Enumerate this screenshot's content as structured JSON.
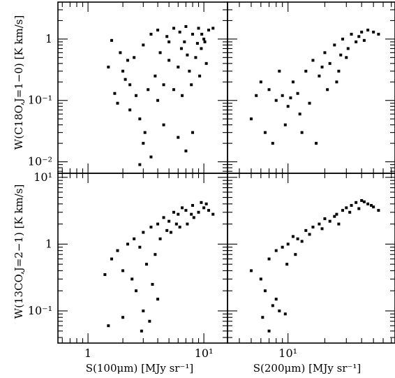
{
  "chart_data": [
    {
      "type": "scatter",
      "panel": "top-left",
      "x_scale": "log",
      "y_scale": "log",
      "xlim": [
        0.55,
        16
      ],
      "ylim": [
        0.0065,
        4.0
      ],
      "ylabel": "W(C18O,J=1−0) [K km/s]",
      "y_ticklabels": [
        {
          "v": 1,
          "t": "1"
        },
        {
          "v": 0.1,
          "t": "10⁻¹"
        },
        {
          "v": 0.01,
          "t": "10⁻²"
        }
      ],
      "x_ticklabels": [],
      "points": [
        [
          1.6,
          0.95
        ],
        [
          1.9,
          0.6
        ],
        [
          2.0,
          0.3
        ],
        [
          2.3,
          0.18
        ],
        [
          2.6,
          0.12
        ],
        [
          2.1,
          0.22
        ],
        [
          1.5,
          0.35
        ],
        [
          1.8,
          0.09
        ],
        [
          2.3,
          0.07
        ],
        [
          2.8,
          0.05
        ],
        [
          3.1,
          0.03
        ],
        [
          1.7,
          0.13
        ],
        [
          2.5,
          0.5
        ],
        [
          3.0,
          0.8
        ],
        [
          3.5,
          1.2
        ],
        [
          4.0,
          1.4
        ],
        [
          4.8,
          1.1
        ],
        [
          5.5,
          1.5
        ],
        [
          6.2,
          1.3
        ],
        [
          7.0,
          1.6
        ],
        [
          8.0,
          1.2
        ],
        [
          9.0,
          1.5
        ],
        [
          10.0,
          1.0
        ],
        [
          11.0,
          1.4
        ],
        [
          4.2,
          0.6
        ],
        [
          5.0,
          0.45
        ],
        [
          6.0,
          0.35
        ],
        [
          7.5,
          0.3
        ],
        [
          9.2,
          0.25
        ],
        [
          10.5,
          0.4
        ],
        [
          3.8,
          0.25
        ],
        [
          4.5,
          0.18
        ],
        [
          5.5,
          0.15
        ],
        [
          6.5,
          0.12
        ],
        [
          7.8,
          0.18
        ],
        [
          8.5,
          0.5
        ],
        [
          9.5,
          0.7
        ],
        [
          3.0,
          0.02
        ],
        [
          3.5,
          0.012
        ],
        [
          4.5,
          0.04
        ],
        [
          6.0,
          0.025
        ],
        [
          7.0,
          0.015
        ],
        [
          8.0,
          0.03
        ],
        [
          2.8,
          0.009
        ],
        [
          5.0,
          0.9
        ],
        [
          6.8,
          0.9
        ],
        [
          8.8,
          0.85
        ],
        [
          10.2,
          0.9
        ],
        [
          12.0,
          1.5
        ],
        [
          4.0,
          0.1
        ],
        [
          3.3,
          0.15
        ],
        [
          2.2,
          0.45
        ],
        [
          6.4,
          0.7
        ],
        [
          7.2,
          0.55
        ],
        [
          9.6,
          1.2
        ]
      ]
    },
    {
      "type": "scatter",
      "panel": "top-right",
      "x_scale": "log",
      "y_scale": "log",
      "xlim": [
        3.2,
        75
      ],
      "ylim": [
        0.0065,
        4.0
      ],
      "x_ticklabels": [],
      "y_ticklabels": [],
      "points": [
        [
          6.0,
          0.2
        ],
        [
          7.0,
          0.15
        ],
        [
          8.0,
          0.1
        ],
        [
          9.0,
          0.12
        ],
        [
          10.0,
          0.08
        ],
        [
          11.0,
          0.2
        ],
        [
          12.0,
          0.13
        ],
        [
          14.0,
          0.3
        ],
        [
          16.0,
          0.45
        ],
        [
          18.0,
          0.25
        ],
        [
          20.0,
          0.6
        ],
        [
          22.0,
          0.4
        ],
        [
          24.0,
          0.8
        ],
        [
          26.0,
          0.3
        ],
        [
          28.0,
          1.0
        ],
        [
          30.0,
          0.5
        ],
        [
          33.0,
          1.2
        ],
        [
          36.0,
          0.9
        ],
        [
          40.0,
          1.3
        ],
        [
          45.0,
          1.4
        ],
        [
          50.0,
          1.3
        ],
        [
          55.0,
          1.2
        ],
        [
          5.0,
          0.05
        ],
        [
          6.5,
          0.03
        ],
        [
          7.5,
          0.02
        ],
        [
          9.5,
          0.04
        ],
        [
          13.0,
          0.03
        ],
        [
          17.0,
          0.02
        ],
        [
          15.0,
          0.09
        ],
        [
          12.5,
          0.06
        ],
        [
          8.5,
          0.3
        ],
        [
          25.0,
          0.2
        ],
        [
          27.0,
          0.55
        ],
        [
          31.0,
          0.7
        ],
        [
          21.0,
          0.15
        ],
        [
          19.0,
          0.35
        ],
        [
          38.0,
          1.1
        ],
        [
          42.0,
          0.95
        ],
        [
          5.5,
          0.12
        ],
        [
          10.5,
          0.11
        ]
      ]
    },
    {
      "type": "scatter",
      "panel": "bottom-left",
      "x_scale": "log",
      "y_scale": "log",
      "xlim": [
        0.55,
        16
      ],
      "ylim": [
        0.033,
        11.5
      ],
      "ylabel": "W(13CO,J=2−1) [K km/s]",
      "xlabel": "S(100μm) [MJy sr⁻¹]",
      "y_ticklabels": [
        {
          "v": 10,
          "t": "10¹"
        },
        {
          "v": 1,
          "t": "1"
        },
        {
          "v": 0.1,
          "t": "10⁻¹"
        }
      ],
      "x_ticklabels": [
        {
          "v": 1,
          "t": "1"
        },
        {
          "v": 10,
          "t": "10¹"
        }
      ],
      "points": [
        [
          1.4,
          0.35
        ],
        [
          1.6,
          0.6
        ],
        [
          1.8,
          0.8
        ],
        [
          2.0,
          0.4
        ],
        [
          2.2,
          1.0
        ],
        [
          2.5,
          1.2
        ],
        [
          2.8,
          0.9
        ],
        [
          3.0,
          1.5
        ],
        [
          3.5,
          1.8
        ],
        [
          4.0,
          2.0
        ],
        [
          4.5,
          2.5
        ],
        [
          5.0,
          2.2
        ],
        [
          5.5,
          3.0
        ],
        [
          6.0,
          2.8
        ],
        [
          6.5,
          3.5
        ],
        [
          7.0,
          3.2
        ],
        [
          8.0,
          3.8
        ],
        [
          9.0,
          3.0
        ],
        [
          10.0,
          3.5
        ],
        [
          11.0,
          3.2
        ],
        [
          12.0,
          2.8
        ],
        [
          3.2,
          0.5
        ],
        [
          3.8,
          0.7
        ],
        [
          4.2,
          1.2
        ],
        [
          5.2,
          1.5
        ],
        [
          6.2,
          1.8
        ],
        [
          7.2,
          2.0
        ],
        [
          8.2,
          2.5
        ],
        [
          2.6,
          0.2
        ],
        [
          3.0,
          0.1
        ],
        [
          3.4,
          0.07
        ],
        [
          2.9,
          0.05
        ],
        [
          1.5,
          0.06
        ],
        [
          2.0,
          0.08
        ],
        [
          4.0,
          0.15
        ],
        [
          3.6,
          0.25
        ],
        [
          2.4,
          0.3
        ],
        [
          9.5,
          4.2
        ],
        [
          10.5,
          4.0
        ],
        [
          7.8,
          2.8
        ],
        [
          5.8,
          2.0
        ],
        [
          4.8,
          1.6
        ]
      ]
    },
    {
      "type": "scatter",
      "panel": "bottom-right",
      "x_scale": "log",
      "y_scale": "log",
      "xlim": [
        3.2,
        75
      ],
      "ylim": [
        0.033,
        11.5
      ],
      "xlabel": "S(200μm) [MJy sr⁻¹]",
      "y_ticklabels": [],
      "x_ticklabels": [
        {
          "v": 10,
          "t": "10¹"
        }
      ],
      "points": [
        [
          5.0,
          0.4
        ],
        [
          6.0,
          0.3
        ],
        [
          7.0,
          0.6
        ],
        [
          8.0,
          0.8
        ],
        [
          9.0,
          0.9
        ],
        [
          10.0,
          1.0
        ],
        [
          11.0,
          1.3
        ],
        [
          12.0,
          1.2
        ],
        [
          14.0,
          1.6
        ],
        [
          16.0,
          1.8
        ],
        [
          18.0,
          2.0
        ],
        [
          20.0,
          2.4
        ],
        [
          22.0,
          2.2
        ],
        [
          25.0,
          2.8
        ],
        [
          28.0,
          3.2
        ],
        [
          30.0,
          3.5
        ],
        [
          33.0,
          3.8
        ],
        [
          36.0,
          4.2
        ],
        [
          40.0,
          4.5
        ],
        [
          45.0,
          4.0
        ],
        [
          50.0,
          3.6
        ],
        [
          55.0,
          3.2
        ],
        [
          6.5,
          0.2
        ],
        [
          7.5,
          0.12
        ],
        [
          8.5,
          0.1
        ],
        [
          9.5,
          0.09
        ],
        [
          7.0,
          0.05
        ],
        [
          6.2,
          0.08
        ],
        [
          8.0,
          0.15
        ],
        [
          26.0,
          2.0
        ],
        [
          32.0,
          3.0
        ],
        [
          38.0,
          3.4
        ],
        [
          24.0,
          2.6
        ],
        [
          15.0,
          1.4
        ],
        [
          19.0,
          1.7
        ],
        [
          13.0,
          1.1
        ],
        [
          11.5,
          0.7
        ],
        [
          9.8,
          0.5
        ],
        [
          42.0,
          4.3
        ],
        [
          48.0,
          3.8
        ]
      ]
    }
  ]
}
